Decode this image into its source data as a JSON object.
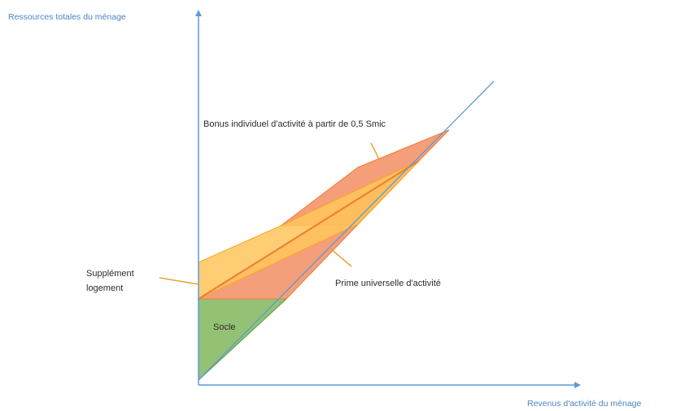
{
  "axes": {
    "y_label": "Ressources totales du ménage",
    "x_label": "Revenus d'activité du ménage"
  },
  "labels": {
    "bonus": "Bonus individuel d'activité à partir de 0,5 Smic",
    "prime": "Prime universelle d'activité",
    "supplement_line1": "Supplément",
    "supplement_line2": "logement",
    "socle": "Socle"
  },
  "colors": {
    "axis": "#5b9bd5",
    "socle_fill": "#70ad47",
    "socle_stroke": "#5a9a38",
    "prime_fill": "#f4936b",
    "prime_stroke": "#ed7d31",
    "bonus_fill": "#f4936b",
    "supplement_fill": "#ffc55c",
    "supplement_stroke": "#f5a623",
    "leader": "#e8a33a",
    "y_label_color": "#4a86c5",
    "x_label_color": "#4a86c5",
    "text_color": "#2b2b2b"
  }
}
